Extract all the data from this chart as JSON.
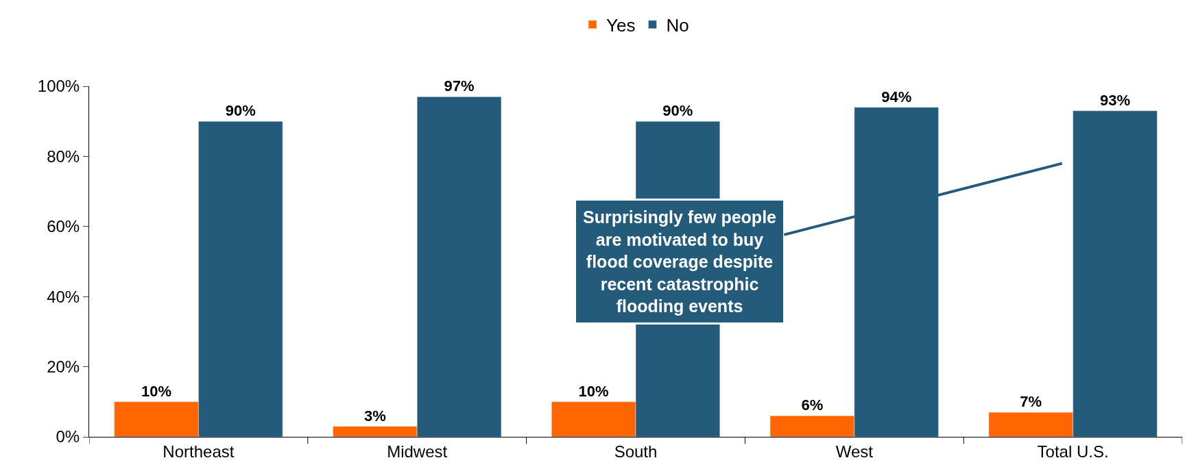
{
  "chart_data": {
    "type": "bar",
    "categories": [
      "Northeast",
      "Midwest",
      "South",
      "West",
      "Total U.S."
    ],
    "series": [
      {
        "name": "Yes",
        "color": "#ff6600",
        "values": [
          10,
          3,
          10,
          6,
          7
        ],
        "value_labels": [
          "10%",
          "3%",
          "10%",
          "6%",
          "7%"
        ]
      },
      {
        "name": "No",
        "color": "#245a7a",
        "values": [
          90,
          97,
          90,
          94,
          93
        ],
        "value_labels": [
          "90%",
          "97%",
          "90%",
          "94%",
          "93%"
        ]
      }
    ],
    "ylim": [
      0,
      100
    ],
    "yticks": [
      {
        "value": 0,
        "label": "0%"
      },
      {
        "value": 20,
        "label": "20%"
      },
      {
        "value": 40,
        "label": "40%"
      },
      {
        "value": 60,
        "label": "60%"
      },
      {
        "value": 80,
        "label": "80%"
      },
      {
        "value": 100,
        "label": "100%"
      }
    ],
    "annotations": [
      "Surprisingly few people\nare motivated to buy\nflood coverage despite\nrecent catastrophic\nflooding events"
    ],
    "legend": "top"
  }
}
